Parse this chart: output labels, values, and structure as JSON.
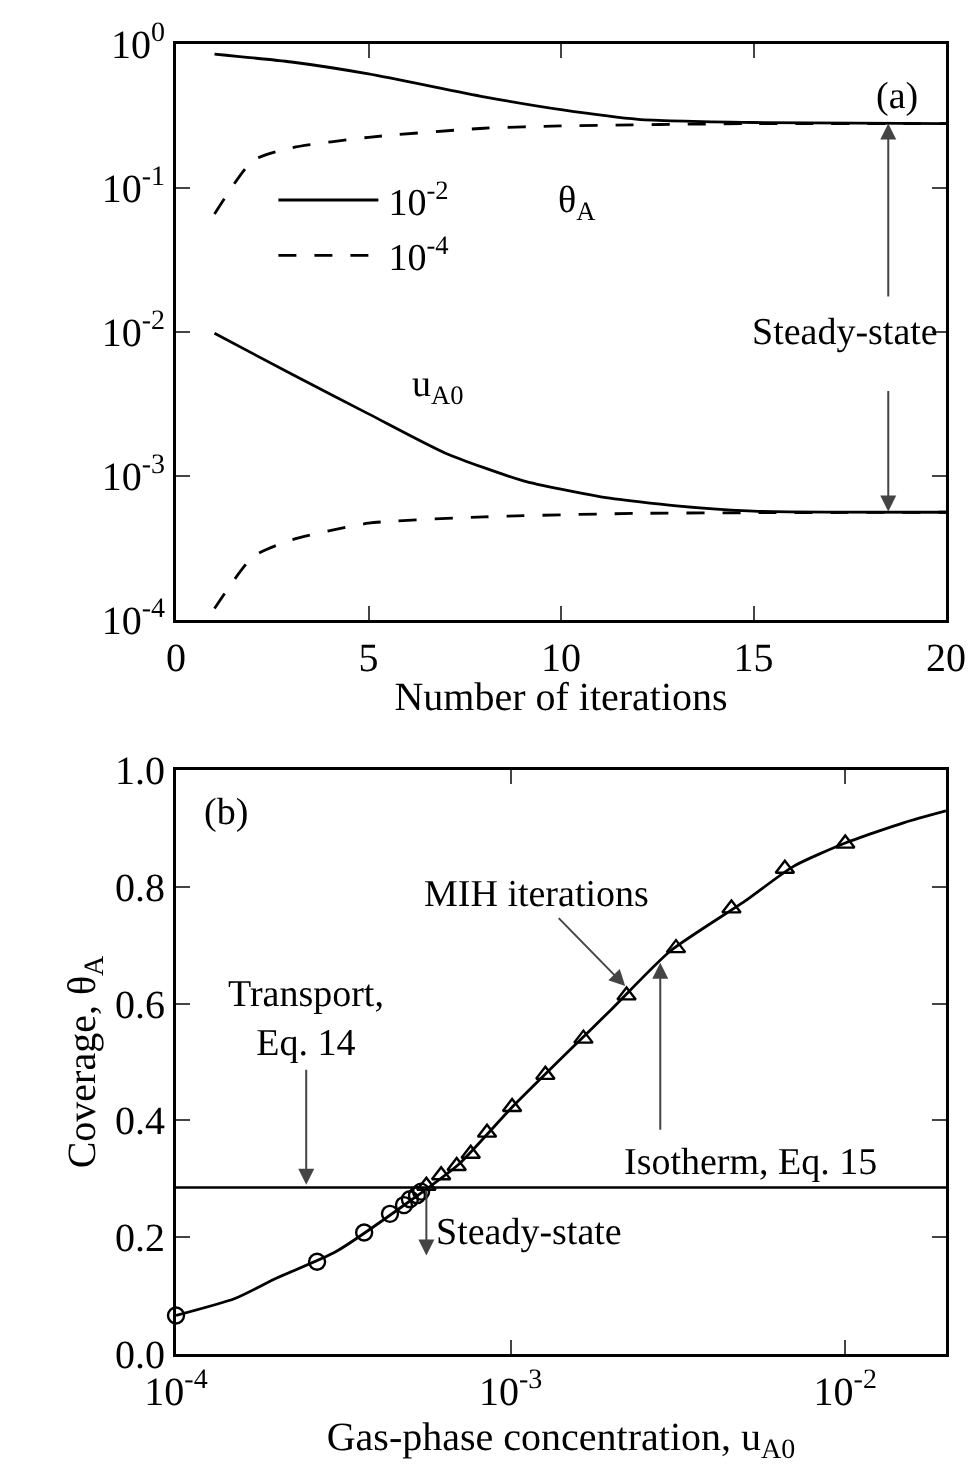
{
  "chart_data": [
    {
      "type": "line",
      "xlabel": "Number of iterations",
      "log": "y",
      "xlim": [
        0,
        20
      ],
      "xticks": [
        0,
        5,
        10,
        15,
        20
      ],
      "ylim": [
        0.0001,
        1
      ],
      "yticks": [
        {
          "value": 0.0001,
          "label": "10$^{-4}$"
        },
        {
          "value": 0.001,
          "label": "10$^{-3}$"
        },
        {
          "value": 0.01,
          "label": "10$^{-2}$"
        },
        {
          "value": 0.1,
          "label": "10$^{-1}$"
        },
        {
          "value": 1,
          "label": "10$^{0}$"
        }
      ],
      "legend": "left",
      "series": [
        {
          "name": "10$^{-2}$",
          "color": "#000000",
          "line_style": "solid",
          "x": [
            1,
            3,
            5,
            8,
            10,
            12,
            15,
            20
          ],
          "values": [
            0.85,
            0.75,
            0.62,
            0.43,
            0.35,
            0.3,
            0.285,
            0.28
          ]
        },
        {
          "name": "10$^{-4}$",
          "color": "#000000",
          "line_style": "dashed",
          "x": [
            1,
            2,
            3,
            5,
            8,
            10,
            15,
            20
          ],
          "values": [
            0.066,
            0.155,
            0.19,
            0.225,
            0.26,
            0.27,
            0.28,
            0.28
          ]
        },
        {
          "color": "#000000",
          "line_style": "solid",
          "x": [
            1,
            3,
            5,
            7,
            9,
            11,
            13,
            15,
            20
          ],
          "values": [
            0.0098,
            0.0051,
            0.0027,
            0.00144,
            0.00093,
            0.00072,
            0.00062,
            0.00057,
            0.00056
          ]
        },
        {
          "color": "#000000",
          "line_style": "dashed",
          "x": [
            1,
            2,
            3,
            5,
            8,
            12,
            20
          ],
          "values": [
            0.00012,
            0.000275,
            0.00036,
            0.00047,
            0.00052,
            0.00055,
            0.00056
          ]
        }
      ],
      "annotations": [
        "(a)",
        "θ$_{A}$",
        "u$_{A0}$",
        {
          "text": "Steady-state",
          "x": 18.5,
          "y": 0.28
        }
      ]
    },
    {
      "type": "line",
      "xlabel": "Gas-phase concentration, u$_{A0}$",
      "ylabel": "Coverage, θ$_{A}$",
      "log": "x",
      "xlim": [
        0.0001,
        0.02
      ],
      "xticks": [
        {
          "value": 0.0001,
          "label": "10$^{-4}$"
        },
        {
          "value": 0.001,
          "label": "10$^{-3}$"
        },
        {
          "value": 0.01,
          "label": "10$^{-2}$"
        }
      ],
      "ylim": [
        0,
        1
      ],
      "yticks": [
        {
          "value": 0,
          "label": "0.0"
        },
        0.2,
        0.4,
        0.6,
        0.8,
        {
          "value": 1,
          "label": "1.0"
        }
      ],
      "series": [
        {
          "type": "line",
          "color": "#000000",
          "line_style": "solid",
          "marker": "none",
          "x": [
            0.0001,
            0.00015,
            0.0002,
            0.0003,
            0.0005,
            0.0007,
            0.001,
            0.0015,
            0.002,
            0.003,
            0.005,
            0.007,
            0.01,
            0.015,
            0.02
          ],
          "values": [
            0.066,
            0.095,
            0.13,
            0.175,
            0.262,
            0.325,
            0.42,
            0.52,
            0.59,
            0.69,
            0.775,
            0.835,
            0.875,
            0.91,
            0.93
          ]
        },
        {
          "type": "scatter",
          "color": "#000000",
          "marker": "circle",
          "x": [
            0.0001,
            0.000264,
            0.000365,
            0.000436,
            0.00048,
            0.0005,
            0.000525,
            0.00054
          ],
          "values": [
            0.066,
            0.158,
            0.208,
            0.24,
            0.255,
            0.265,
            0.272,
            0.278
          ]
        },
        {
          "type": "scatter",
          "color": "#000000",
          "marker": "triangle",
          "x": [
            0.00056,
            0.00062,
            0.00069,
            0.00076,
            0.00085,
            0.00101,
            0.00127,
            0.00165,
            0.00222,
            0.00312,
            0.00457,
            0.0066,
            0.01
          ],
          "values": [
            0.288,
            0.306,
            0.322,
            0.343,
            0.379,
            0.423,
            0.478,
            0.54,
            0.614,
            0.695,
            0.763,
            0.831,
            0.874
          ]
        }
      ],
      "ref_lines": [
        {
          "axis": "y",
          "value": 0.285,
          "color": "#000000"
        }
      ],
      "annotations": [
        "(b)",
        {
          "text": "MIH iterations",
          "x": 0.0022,
          "y": 0.63
        },
        {
          "text": "Transport,\nEq. 14",
          "x": 0.000245,
          "y": 0.29
        },
        {
          "text": "Isotherm, Eq. 15",
          "x": 0.0028,
          "y": 0.67
        },
        {
          "text": "Steady-state",
          "x": 0.00056,
          "y": 0.285
        }
      ]
    }
  ]
}
